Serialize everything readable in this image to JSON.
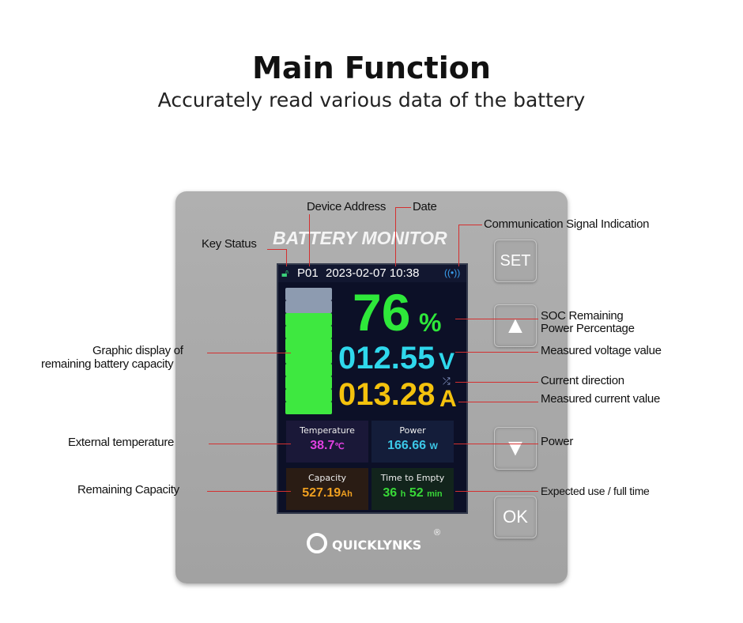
{
  "heading": {
    "title": "Main Function",
    "subtitle": "Accurately read various data of the battery"
  },
  "device": {
    "brand_text": "BATTERY MONITOR",
    "logo": "QUICKLYNKS",
    "registered": "®",
    "buttons": {
      "set": "SET",
      "up": "▲",
      "down": "▼",
      "ok": "OK"
    }
  },
  "screen": {
    "lock_icon": "unlocked-padlock-icon",
    "address": "P01",
    "datetime": "2023-02-07 10:38",
    "signal_icon": "wireless-signal-icon",
    "soc_value": "76",
    "soc_unit": "%",
    "soc_percent": 76,
    "battery_bars_total": 10,
    "battery_bars_filled": 8,
    "voltage": "012.55",
    "voltage_unit": "V",
    "direction_icon": "shuffle-arrows-icon",
    "current": "013.28",
    "current_unit": "A",
    "tiles": {
      "temperature": {
        "label": "Temperature",
        "value": "38.7",
        "unit": "℃"
      },
      "power": {
        "label": "Power",
        "value": "166.66",
        "unit": "W"
      },
      "capacity": {
        "label": "Capacity",
        "value": "527.19",
        "unit": "Ah"
      },
      "time": {
        "label": "Time to Empty",
        "h": "36",
        "h_unit": "h",
        "m": "52",
        "m_unit": "min"
      }
    }
  },
  "annotations": {
    "device_address": "Device Address",
    "date": "Date",
    "key_status": "Key Status",
    "comm": "Communication Signal Indication",
    "soc1": "SOC Remaining",
    "soc2": "Power Percentage",
    "voltage": "Measured voltage value",
    "direction": "Current direction",
    "current": "Measured current value",
    "graphic1": "Graphic display of",
    "graphic2": "remaining battery capacity",
    "temperature": "External temperature",
    "power": "Power",
    "capacity": "Remaining Capacity",
    "time": "Expected use / full time"
  },
  "colors": {
    "soc": "#2ee83a",
    "voltage": "#2fd8ec",
    "current": "#f4c20d",
    "temperature": "#e040e0",
    "power": "#3cc8e8",
    "capacity": "#f0a020",
    "time": "#38d838",
    "annotation_line": "#d43030"
  }
}
